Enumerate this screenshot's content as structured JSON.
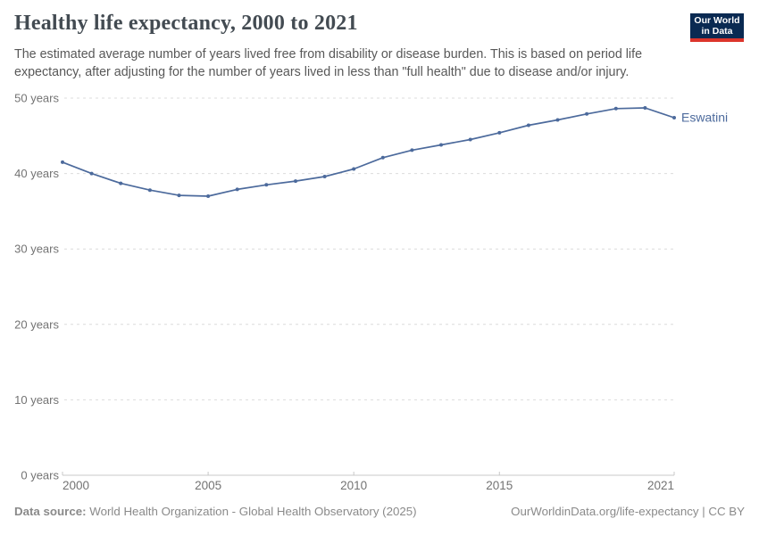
{
  "chart_data": {
    "type": "line",
    "title": "Healthy life expectancy, 2000 to 2021",
    "subtitle_lines": [
      "The estimated average number of years lived free from disability or disease burden. This is based on period life",
      "expectancy, after adjusting for the number of years lived in less than \"full health\" due to disease and/or injury."
    ],
    "x": [
      2000,
      2001,
      2002,
      2003,
      2004,
      2005,
      2006,
      2007,
      2008,
      2009,
      2010,
      2011,
      2012,
      2013,
      2014,
      2015,
      2016,
      2017,
      2018,
      2019,
      2020,
      2021
    ],
    "series": [
      {
        "name": "Eswatini",
        "color": "#4c6a9c",
        "values": [
          41.5,
          40.0,
          38.7,
          37.8,
          37.1,
          37.0,
          37.9,
          38.5,
          39.0,
          39.6,
          40.6,
          42.1,
          43.1,
          43.8,
          44.5,
          45.4,
          46.4,
          47.1,
          47.9,
          48.6,
          48.7,
          47.4
        ]
      }
    ],
    "xlim": [
      2000,
      2021
    ],
    "ylim": [
      0,
      50
    ],
    "ylabel": "",
    "xlabel": "",
    "grid": "horizontal-dashed",
    "legend_position": "end-of-line-label",
    "y_ticks": [
      {
        "value": 0,
        "label": "0 years"
      },
      {
        "value": 10,
        "label": "10 years"
      },
      {
        "value": 20,
        "label": "20 years"
      },
      {
        "value": 30,
        "label": "30 years"
      },
      {
        "value": 40,
        "label": "40 years"
      },
      {
        "value": 50,
        "label": "50 years"
      }
    ],
    "x_ticks": [
      {
        "value": 2000,
        "label": "2000",
        "anchor": "start"
      },
      {
        "value": 2005,
        "label": "2005",
        "anchor": "middle"
      },
      {
        "value": 2010,
        "label": "2010",
        "anchor": "middle"
      },
      {
        "value": 2015,
        "label": "2015",
        "anchor": "middle"
      },
      {
        "value": 2021,
        "label": "2021",
        "anchor": "end"
      }
    ],
    "axis_color": "#c8c8c8",
    "gridline_color": "#dcdcdc",
    "tick_label_color": "#737373"
  },
  "logo": {
    "line1": "Our World",
    "line2": "in Data",
    "bg_color": "#0a2a52",
    "bar_color": "#dc352c"
  },
  "footer": {
    "source_label": "Data source:",
    "source_value": "World Health Organization - Global Health Observatory (2025)",
    "credit": "OurWorldinData.org/life-expectancy | CC BY"
  }
}
